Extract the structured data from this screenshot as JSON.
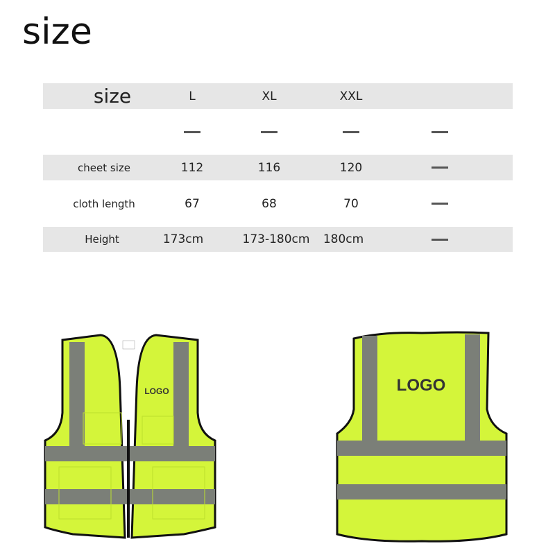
{
  "title": "size",
  "table": {
    "header": {
      "label": "size",
      "cols": [
        "L",
        "XL",
        "XXL",
        ""
      ]
    },
    "rows": [
      {
        "label": "",
        "values": [
          "—",
          "—",
          "—",
          "—"
        ]
      },
      {
        "label": "cheet size",
        "values": [
          "112",
          "116",
          "120",
          "—"
        ]
      },
      {
        "label": "cloth length",
        "values": [
          "67",
          "68",
          "70",
          "—"
        ]
      },
      {
        "label": "Height",
        "values": [
          "173cm",
          "173-180cm",
          "180cm",
          "—"
        ]
      }
    ]
  },
  "vests": {
    "front_logo": "LOGO",
    "back_logo": "LOGO",
    "colors": {
      "fabric": "#d4f53a",
      "reflective": "#7b7f78",
      "trim": "#111111"
    }
  }
}
